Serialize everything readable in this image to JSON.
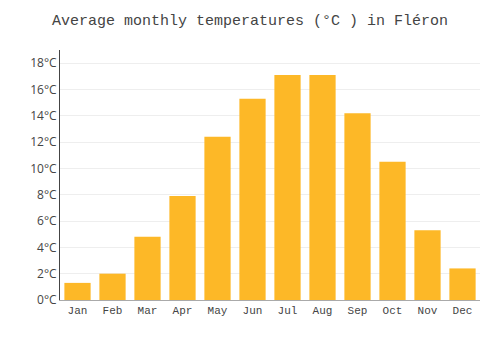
{
  "chart_data": {
    "type": "bar",
    "title": "Average monthly temperatures (°C ) in Fléron",
    "categories": [
      "Jan",
      "Feb",
      "Mar",
      "Apr",
      "May",
      "Jun",
      "Jul",
      "Aug",
      "Sep",
      "Oct",
      "Nov",
      "Dec"
    ],
    "values": [
      1.3,
      2.0,
      4.8,
      7.9,
      12.4,
      15.3,
      17.1,
      17.1,
      14.2,
      10.5,
      5.3,
      2.4
    ],
    "color": "#FDB827",
    "ylim": [
      0,
      19
    ],
    "yticks": [
      {
        "value": 0,
        "label": "0°C"
      },
      {
        "value": 2,
        "label": "2°C"
      },
      {
        "value": 4,
        "label": "4°C"
      },
      {
        "value": 6,
        "label": "6°C"
      },
      {
        "value": 8,
        "label": "8°C"
      },
      {
        "value": 10,
        "label": "10°C"
      },
      {
        "value": 12,
        "label": "12°C"
      },
      {
        "value": 14,
        "label": "14°C"
      },
      {
        "value": 16,
        "label": "16°C"
      },
      {
        "value": 18,
        "label": "18°C"
      }
    ],
    "grid": true
  }
}
